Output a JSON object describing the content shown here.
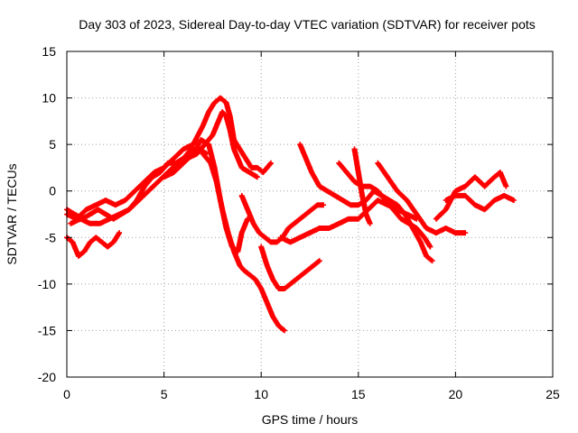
{
  "chart_data": {
    "type": "scatter",
    "title": "Day 303 of 2023, Sidereal Day-to-day VTEC variation (SDTVAR) for receiver pots",
    "xlabel": "GPS time / hours",
    "ylabel": "SDTVAR / TECUs",
    "xlim": [
      0,
      25
    ],
    "ylim": [
      -20,
      15
    ],
    "xticks": [
      0,
      5,
      10,
      15,
      20,
      25
    ],
    "yticks": [
      -20,
      -15,
      -10,
      -5,
      0,
      5,
      10,
      15
    ],
    "xtick_labels": [
      "0",
      "5",
      "10",
      "15",
      "20",
      "25"
    ],
    "ytick_labels": [
      "-20",
      "-15",
      "-10",
      "-5",
      "0",
      "5",
      "10",
      "15"
    ],
    "grid": true,
    "marker": "+",
    "color": "#ff0000",
    "series": [
      {
        "name": "track-1",
        "points": [
          [
            0.0,
            -2.5
          ],
          [
            0.5,
            -3.0
          ],
          [
            1.0,
            -2.0
          ],
          [
            1.5,
            -1.5
          ],
          [
            2.0,
            -1.0
          ],
          [
            2.5,
            -1.5
          ],
          [
            3.0,
            -1.0
          ],
          [
            3.5,
            0.0
          ],
          [
            4.0,
            1.0
          ],
          [
            4.5,
            2.0
          ],
          [
            5.0,
            2.5
          ],
          [
            5.5,
            3.5
          ],
          [
            6.0,
            4.5
          ],
          [
            6.5,
            5.0
          ],
          [
            7.0,
            7.0
          ],
          [
            7.3,
            8.5
          ],
          [
            7.6,
            9.5
          ],
          [
            7.9,
            10.0
          ],
          [
            8.2,
            9.5
          ],
          [
            8.4,
            8.0
          ],
          [
            8.6,
            5.5
          ],
          [
            8.9,
            4.5
          ],
          [
            9.2,
            3.5
          ],
          [
            9.5,
            2.5
          ],
          [
            9.8,
            2.5
          ],
          [
            10.1,
            2.0
          ],
          [
            10.5,
            3.0
          ]
        ]
      },
      {
        "name": "track-2",
        "points": [
          [
            0.2,
            -3.5
          ],
          [
            0.7,
            -3.0
          ],
          [
            1.2,
            -3.5
          ],
          [
            1.7,
            -3.5
          ],
          [
            2.2,
            -3.0
          ],
          [
            2.7,
            -2.5
          ],
          [
            3.2,
            -2.0
          ],
          [
            3.7,
            -1.0
          ],
          [
            4.2,
            0.0
          ],
          [
            4.7,
            1.0
          ],
          [
            5.2,
            2.0
          ],
          [
            5.7,
            3.0
          ],
          [
            6.2,
            3.5
          ],
          [
            6.7,
            4.0
          ],
          [
            7.1,
            5.0
          ],
          [
            7.5,
            6.0
          ],
          [
            7.8,
            7.5
          ],
          [
            8.0,
            8.5
          ],
          [
            8.2,
            8.0
          ],
          [
            8.4,
            6.5
          ],
          [
            8.6,
            4.5
          ],
          [
            8.8,
            3.5
          ],
          [
            9.0,
            2.5
          ],
          [
            9.4,
            2.0
          ],
          [
            9.8,
            1.5
          ]
        ]
      },
      {
        "name": "track-3",
        "points": [
          [
            5.0,
            1.5
          ],
          [
            5.5,
            2.0
          ],
          [
            6.0,
            3.0
          ],
          [
            6.5,
            4.0
          ],
          [
            6.9,
            5.5
          ],
          [
            7.3,
            5.0
          ],
          [
            7.6,
            2.5
          ],
          [
            7.9,
            -1.0
          ],
          [
            8.2,
            -4.0
          ],
          [
            8.5,
            -6.0
          ],
          [
            8.8,
            -6.5
          ],
          [
            9.0,
            -4.5
          ],
          [
            9.3,
            -3.0
          ]
        ]
      },
      {
        "name": "track-4",
        "points": [
          [
            7.0,
            4.0
          ],
          [
            7.4,
            3.0
          ],
          [
            7.7,
            1.0
          ],
          [
            8.0,
            -2.0
          ],
          [
            8.3,
            -4.5
          ],
          [
            8.6,
            -6.5
          ],
          [
            8.9,
            -8.0
          ],
          [
            9.1,
            -8.5
          ],
          [
            9.4,
            -9.0
          ],
          [
            9.7,
            -9.5
          ],
          [
            10.0,
            -10.5
          ],
          [
            10.3,
            -12.0
          ],
          [
            10.6,
            -13.5
          ],
          [
            10.9,
            -14.5
          ],
          [
            11.2,
            -15.0
          ]
        ]
      },
      {
        "name": "track-5",
        "points": [
          [
            9.0,
            -0.5
          ],
          [
            9.3,
            -2.0
          ],
          [
            9.6,
            -3.5
          ],
          [
            9.9,
            -4.5
          ],
          [
            10.2,
            -5.0
          ],
          [
            10.5,
            -5.5
          ],
          [
            10.8,
            -5.5
          ],
          [
            11.1,
            -5.0
          ],
          [
            11.4,
            -4.0
          ],
          [
            11.7,
            -3.5
          ],
          [
            12.0,
            -3.0
          ],
          [
            12.3,
            -2.5
          ],
          [
            12.6,
            -2.0
          ],
          [
            12.9,
            -1.5
          ],
          [
            13.2,
            -1.5
          ]
        ]
      },
      {
        "name": "track-6",
        "points": [
          [
            10.0,
            -6.0
          ],
          [
            10.3,
            -8.0
          ],
          [
            10.6,
            -9.5
          ],
          [
            10.9,
            -10.5
          ],
          [
            11.2,
            -10.5
          ],
          [
            11.5,
            -10.0
          ],
          [
            11.8,
            -9.5
          ],
          [
            12.1,
            -9.0
          ],
          [
            12.4,
            -8.5
          ],
          [
            12.7,
            -8.0
          ],
          [
            13.0,
            -7.5
          ]
        ]
      },
      {
        "name": "track-7",
        "points": [
          [
            11.0,
            -5.0
          ],
          [
            11.5,
            -5.5
          ],
          [
            12.0,
            -5.0
          ],
          [
            12.5,
            -4.5
          ],
          [
            13.0,
            -4.0
          ],
          [
            13.5,
            -4.0
          ],
          [
            14.0,
            -3.5
          ],
          [
            14.5,
            -3.0
          ],
          [
            15.0,
            -3.0
          ],
          [
            15.5,
            -2.0
          ],
          [
            16.0,
            -1.0
          ],
          [
            16.5,
            -1.5
          ],
          [
            17.0,
            -2.0
          ],
          [
            17.5,
            -2.5
          ],
          [
            18.0,
            -3.0
          ]
        ]
      },
      {
        "name": "track-8",
        "points": [
          [
            12.0,
            5.0
          ],
          [
            12.3,
            3.5
          ],
          [
            12.6,
            2.0
          ],
          [
            13.0,
            0.5
          ],
          [
            13.4,
            0.0
          ],
          [
            13.8,
            -0.5
          ],
          [
            14.2,
            -1.0
          ],
          [
            14.6,
            -1.5
          ],
          [
            15.0,
            -1.5
          ],
          [
            15.4,
            -1.0
          ],
          [
            15.8,
            0.0
          ],
          [
            16.2,
            -0.5
          ],
          [
            16.6,
            -1.0
          ],
          [
            17.0,
            -1.5
          ],
          [
            17.4,
            -2.5
          ],
          [
            17.8,
            -4.0
          ],
          [
            18.2,
            -5.5
          ],
          [
            18.5,
            -7.0
          ],
          [
            18.8,
            -7.5
          ]
        ]
      },
      {
        "name": "track-9",
        "points": [
          [
            14.0,
            3.0
          ],
          [
            14.4,
            2.0
          ],
          [
            14.8,
            1.0
          ],
          [
            15.2,
            0.5
          ],
          [
            15.6,
            0.5
          ],
          [
            16.0,
            0.0
          ],
          [
            16.4,
            -1.0
          ],
          [
            16.8,
            -2.0
          ],
          [
            17.2,
            -3.0
          ],
          [
            17.6,
            -3.5
          ],
          [
            18.0,
            -4.0
          ],
          [
            18.4,
            -5.0
          ],
          [
            18.7,
            -6.0
          ]
        ]
      },
      {
        "name": "track-10",
        "points": [
          [
            14.8,
            4.5
          ],
          [
            15.0,
            2.0
          ],
          [
            15.2,
            -0.5
          ],
          [
            15.4,
            -2.5
          ],
          [
            15.6,
            -3.5
          ]
        ]
      },
      {
        "name": "track-11",
        "points": [
          [
            16.0,
            3.0
          ],
          [
            16.5,
            1.5
          ],
          [
            17.0,
            0.0
          ],
          [
            17.5,
            -1.0
          ],
          [
            18.0,
            -2.5
          ],
          [
            18.5,
            -4.0
          ],
          [
            19.0,
            -4.5
          ],
          [
            19.5,
            -4.0
          ],
          [
            20.0,
            -4.5
          ],
          [
            20.5,
            -4.5
          ]
        ]
      },
      {
        "name": "track-12",
        "points": [
          [
            19.5,
            -1.0
          ],
          [
            20.0,
            -0.5
          ],
          [
            20.5,
            -0.5
          ],
          [
            21.0,
            -1.5
          ],
          [
            21.5,
            -2.0
          ],
          [
            22.0,
            -1.0
          ],
          [
            22.5,
            -0.5
          ],
          [
            23.0,
            -1.0
          ]
        ]
      },
      {
        "name": "track-13",
        "points": [
          [
            19.0,
            -3.0
          ],
          [
            19.5,
            -2.0
          ],
          [
            20.0,
            0.0
          ],
          [
            20.5,
            0.5
          ],
          [
            21.0,
            1.5
          ],
          [
            21.5,
            0.5
          ],
          [
            22.0,
            1.5
          ],
          [
            22.3,
            2.0
          ],
          [
            22.6,
            0.5
          ]
        ]
      },
      {
        "name": "track-14",
        "points": [
          [
            0.0,
            -5.0
          ],
          [
            0.3,
            -5.5
          ],
          [
            0.6,
            -7.0
          ],
          [
            0.9,
            -6.5
          ],
          [
            1.2,
            -5.5
          ],
          [
            1.5,
            -5.0
          ],
          [
            1.8,
            -5.5
          ],
          [
            2.1,
            -6.0
          ],
          [
            2.4,
            -5.5
          ],
          [
            2.7,
            -4.5
          ]
        ]
      },
      {
        "name": "track-15",
        "points": [
          [
            0.0,
            -2.0
          ],
          [
            0.4,
            -2.5
          ],
          [
            0.8,
            -3.0
          ],
          [
            1.2,
            -2.5
          ],
          [
            1.6,
            -2.0
          ],
          [
            2.0,
            -2.5
          ],
          [
            2.4,
            -3.0
          ],
          [
            2.8,
            -2.5
          ],
          [
            3.2,
            -2.0
          ],
          [
            3.6,
            -1.0
          ],
          [
            4.0,
            0.5
          ],
          [
            4.4,
            1.5
          ],
          [
            4.8,
            2.0
          ],
          [
            5.2,
            3.0
          ],
          [
            5.6,
            3.0
          ],
          [
            6.0,
            3.5
          ],
          [
            6.4,
            4.5
          ],
          [
            6.8,
            4.5
          ],
          [
            7.2,
            4.0
          ]
        ]
      }
    ]
  }
}
